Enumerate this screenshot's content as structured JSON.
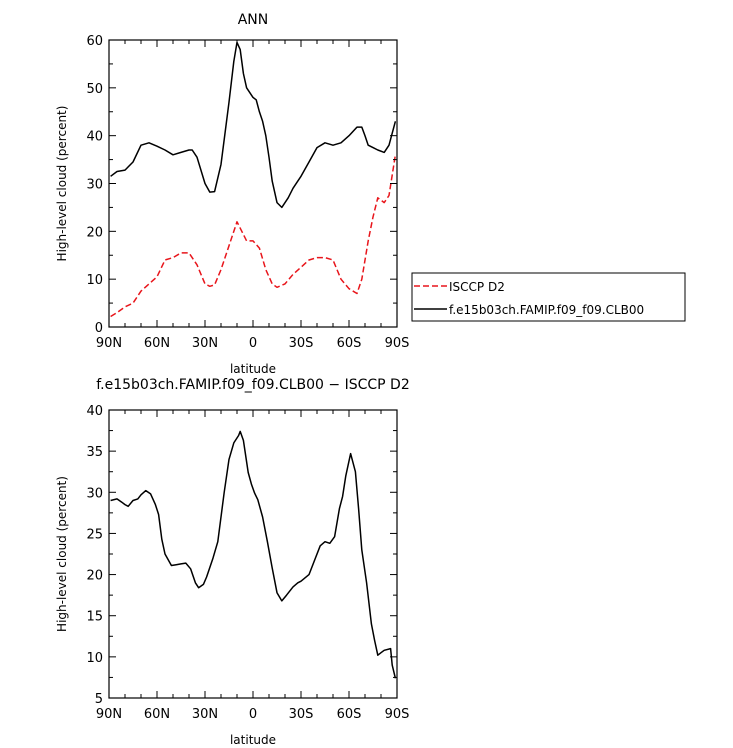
{
  "chart_data": [
    {
      "type": "line",
      "title": "ANN",
      "xlabel": "latitude",
      "ylabel": "High-level cloud (percent)",
      "xlim": [
        -90,
        90
      ],
      "ylim": [
        0,
        60
      ],
      "x_ticks": [
        -90,
        -60,
        -30,
        0,
        30,
        60,
        90
      ],
      "x_tick_labels": [
        "90N",
        "60N",
        "30N",
        "0",
        "30S",
        "60S",
        "90S"
      ],
      "y_ticks": [
        0,
        10,
        20,
        30,
        40,
        50,
        60
      ],
      "y_tick_labels": [
        "0",
        "10",
        "20",
        "30",
        "40",
        "50",
        "60"
      ],
      "legend_position": "right",
      "series": [
        {
          "name": "ISCCP D2",
          "color": "#e8151b",
          "dash": "dashed",
          "x": [
            -89,
            -85,
            -80,
            -75,
            -70,
            -65,
            -60,
            -55,
            -50,
            -45,
            -40,
            -35,
            -30,
            -27,
            -24,
            -20,
            -15,
            -10,
            -7,
            -4,
            0,
            4,
            8,
            12,
            15,
            20,
            25,
            30,
            35,
            40,
            45,
            50,
            55,
            60,
            65,
            68,
            72,
            75,
            78,
            82,
            85,
            89
          ],
          "values": [
            2.2,
            3,
            4.2,
            5,
            7.5,
            9,
            10.5,
            14,
            14.5,
            15.5,
            15.5,
            13,
            9,
            8.5,
            8.8,
            12,
            17,
            22,
            20,
            18,
            18,
            16.5,
            12,
            9,
            8.3,
            9,
            11,
            12.5,
            14,
            14.5,
            14.5,
            14,
            10,
            8,
            7,
            10,
            18,
            23,
            27,
            26,
            27.5,
            36
          ]
        },
        {
          "name": "f.e15b03ch.FAMIP.f09_f09.CLB00",
          "color": "#000000",
          "dash": "solid",
          "x": [
            -89,
            -85,
            -80,
            -75,
            -70,
            -65,
            -60,
            -55,
            -50,
            -45,
            -40,
            -38,
            -35,
            -30,
            -27,
            -24,
            -20,
            -15,
            -12,
            -10,
            -8,
            -6,
            -4,
            0,
            2,
            4,
            6,
            8,
            10,
            12,
            15,
            18,
            22,
            25,
            28,
            30,
            35,
            40,
            45,
            50,
            55,
            60,
            65,
            68,
            70,
            72,
            75,
            78,
            82,
            85,
            89
          ],
          "values": [
            31.5,
            32.5,
            32.8,
            34.5,
            38,
            38.5,
            37.8,
            37,
            36,
            36.5,
            37,
            37,
            35.5,
            30,
            28.2,
            28.3,
            34,
            47,
            55.5,
            59.5,
            58,
            53,
            50,
            48,
            47.5,
            45,
            43,
            40,
            35.5,
            30.5,
            26,
            25,
            27,
            29,
            30.5,
            31.5,
            34.5,
            37.5,
            38.5,
            38,
            38.5,
            40,
            41.8,
            41.8,
            40,
            38,
            37.5,
            37,
            36.5,
            38,
            43
          ]
        }
      ]
    },
    {
      "type": "line",
      "title": "f.e15b03ch.FAMIP.f09_f09.CLB00 − ISCCP D2",
      "xlabel": "latitude",
      "ylabel": "High-level cloud (percent)",
      "xlim": [
        -90,
        90
      ],
      "ylim": [
        5,
        40
      ],
      "x_ticks": [
        -90,
        -60,
        -30,
        0,
        30,
        60,
        90
      ],
      "x_tick_labels": [
        "90N",
        "60N",
        "30N",
        "0",
        "30S",
        "60S",
        "90S"
      ],
      "y_ticks": [
        5,
        10,
        15,
        20,
        25,
        30,
        35,
        40
      ],
      "y_tick_labels": [
        "5",
        "10",
        "15",
        "20",
        "25",
        "30",
        "35",
        "40"
      ],
      "series": [
        {
          "color": "#000000",
          "dash": "solid",
          "x": [
            -89,
            -85,
            -82,
            -80,
            -78,
            -75,
            -72,
            -70,
            -67,
            -64,
            -61,
            -59,
            -57,
            -55,
            -51,
            -48,
            -45,
            -42,
            -39,
            -36,
            -34,
            -31,
            -29,
            -25,
            -22,
            -18,
            -15,
            -12,
            -9,
            -8,
            -6,
            -3,
            -1,
            1,
            3,
            6,
            9,
            12,
            15,
            18,
            21,
            25,
            28,
            30,
            35,
            39,
            42,
            45,
            48,
            51,
            54,
            56,
            58,
            61,
            64,
            66,
            68,
            71,
            74,
            76,
            78,
            80,
            82,
            86,
            87,
            89
          ],
          "values": [
            29,
            29.2,
            28.8,
            28.5,
            28.3,
            29,
            29.2,
            29.7,
            30.2,
            29.8,
            28.5,
            27.3,
            24.3,
            22.5,
            21.1,
            21.2,
            21.3,
            21.4,
            20.7,
            19,
            18.4,
            18.8,
            19.7,
            22,
            24,
            30,
            34,
            36,
            36.9,
            37.4,
            36.3,
            32.4,
            31,
            29.9,
            29.1,
            27,
            24,
            20.8,
            17.8,
            16.8,
            17.5,
            18.5,
            19,
            19.2,
            20,
            22,
            23.5,
            24,
            23.8,
            24.6,
            28,
            29.5,
            32,
            34.7,
            32.5,
            28,
            23,
            19,
            14,
            12,
            10.2,
            10.5,
            10.8,
            11,
            9,
            7.4
          ]
        }
      ]
    }
  ]
}
